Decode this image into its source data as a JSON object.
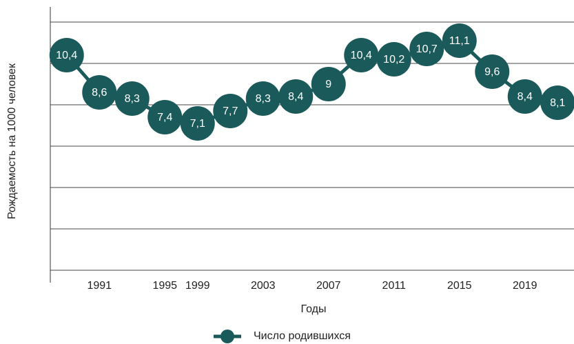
{
  "chart_data": {
    "type": "line",
    "x_label": "Годы",
    "y_label": "Рождаемость на 1000 человек",
    "categories": [
      null,
      "1991",
      null,
      "1995",
      "1999",
      null,
      "2003",
      null,
      "2007",
      null,
      "2011",
      null,
      "2015",
      null,
      "2019",
      null
    ],
    "series": [
      {
        "name": "Число родившихся",
        "color": "#1b5a5a",
        "values": [
          10.4,
          8.6,
          8.3,
          7.4,
          7.1,
          7.7,
          8.3,
          8.4,
          9,
          10.4,
          10.2,
          10.7,
          11.1,
          9.6,
          8.4,
          8.1
        ],
        "value_labels": [
          "10,4",
          "8,6",
          "8,3",
          "7,4",
          "7,1",
          "7,7",
          "8,3",
          "8,4",
          "9",
          "10,4",
          "10,2",
          "10,7",
          "11,1",
          "9,6",
          "8,4",
          "8,1"
        ]
      }
    ],
    "ylim": [
      0,
      12
    ],
    "yticks": [
      0,
      2,
      4,
      6,
      8,
      10,
      12
    ],
    "grid": true,
    "legend": "bottom"
  }
}
